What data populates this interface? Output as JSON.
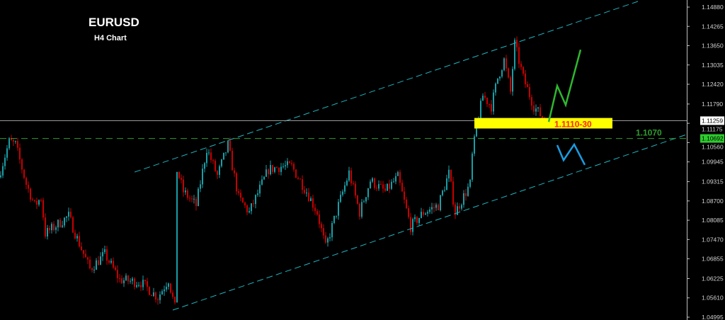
{
  "chart_data": {
    "type": "candlestick",
    "title": "EURUSD",
    "subtitle": "H4 Chart",
    "ylim": [
      1.04995,
      1.1488
    ],
    "y_ticks": [
      "1.14880",
      "1.14265",
      "1.13650",
      "1.13035",
      "1.12420",
      "1.11790",
      "1.11175",
      "1.10560",
      "1.09945",
      "1.09315",
      "1.08700",
      "1.08085",
      "1.07470",
      "1.06855",
      "1.06225",
      "1.05610",
      "1.04995"
    ],
    "current_price": "1.11259",
    "marked_level": "1.10692",
    "colors": {
      "bull": "#1a9ea6",
      "bear": "#c80000",
      "background": "#000000",
      "channel": "#1fb5c0",
      "level": "#2e9e2e",
      "zone": "#ffff00",
      "zone_text": "#ff2020",
      "bull_path": "#2eb82e",
      "bear_path": "#1a9de0"
    },
    "price_path": [
      [
        0,
        1.0946
      ],
      [
        5,
        1.1059
      ],
      [
        8,
        1.105
      ],
      [
        13,
        1.0924
      ],
      [
        17,
        1.0856
      ],
      [
        20,
        1.088
      ],
      [
        22,
        1.0766
      ],
      [
        33,
        1.0822
      ],
      [
        37,
        1.075
      ],
      [
        43,
        1.0653
      ],
      [
        50,
        1.07
      ],
      [
        57,
        1.0619
      ],
      [
        67,
        1.061
      ],
      [
        75,
        1.0563
      ],
      [
        80,
        1.062
      ],
      [
        83,
        1.0529
      ],
      [
        84,
        1.0969
      ],
      [
        87,
        1.09
      ],
      [
        93,
        1.0856
      ],
      [
        98,
        1.1037
      ],
      [
        103,
        1.095
      ],
      [
        108,
        1.1048
      ],
      [
        113,
        1.088
      ],
      [
        118,
        1.0833
      ],
      [
        127,
        1.097
      ],
      [
        133,
        1.098
      ],
      [
        138,
        1.098
      ],
      [
        145,
        1.09
      ],
      [
        150,
        1.0833
      ],
      [
        154,
        1.0721
      ],
      [
        160,
        1.0856
      ],
      [
        165,
        1.096
      ],
      [
        170,
        1.0833
      ],
      [
        175,
        1.0935
      ],
      [
        182,
        1.09
      ],
      [
        188,
        1.0946
      ],
      [
        194,
        1.0788
      ],
      [
        200,
        1.0833
      ],
      [
        207,
        1.0856
      ],
      [
        212,
        1.0958
      ],
      [
        215,
        1.0833
      ],
      [
        222,
        1.0924
      ],
      [
        223,
        1.1014
      ],
      [
        225,
        1.1104
      ],
      [
        228,
        1.1206
      ],
      [
        232,
        1.1172
      ],
      [
        235,
        1.1262
      ],
      [
        238,
        1.1319
      ],
      [
        241,
        1.1217
      ],
      [
        243,
        1.1371
      ],
      [
        247,
        1.1262
      ],
      [
        252,
        1.1172
      ],
      [
        257,
        1.1127
      ]
    ],
    "channel_upper": [
      [
        63,
        1.0962
      ],
      [
        300,
        1.1506
      ]
    ],
    "channel_lower": [
      [
        81,
        1.0522
      ],
      [
        323,
        1.1082
      ]
    ],
    "support_zone": {
      "label": "1.1110-30",
      "from": 1.111,
      "to": 1.113,
      "start_bar": 223,
      "end_bar": 288
    },
    "level_line": {
      "label": "1.1070",
      "price": 1.1069
    },
    "projection_up": [
      [
        258,
        1.1122
      ],
      [
        262,
        1.1237
      ],
      [
        266,
        1.1176
      ],
      [
        273,
        1.1352
      ]
    ],
    "projection_down": [
      [
        262,
        1.1048
      ],
      [
        265,
        1.1
      ],
      [
        270,
        1.105
      ],
      [
        275,
        1.0985
      ]
    ]
  }
}
